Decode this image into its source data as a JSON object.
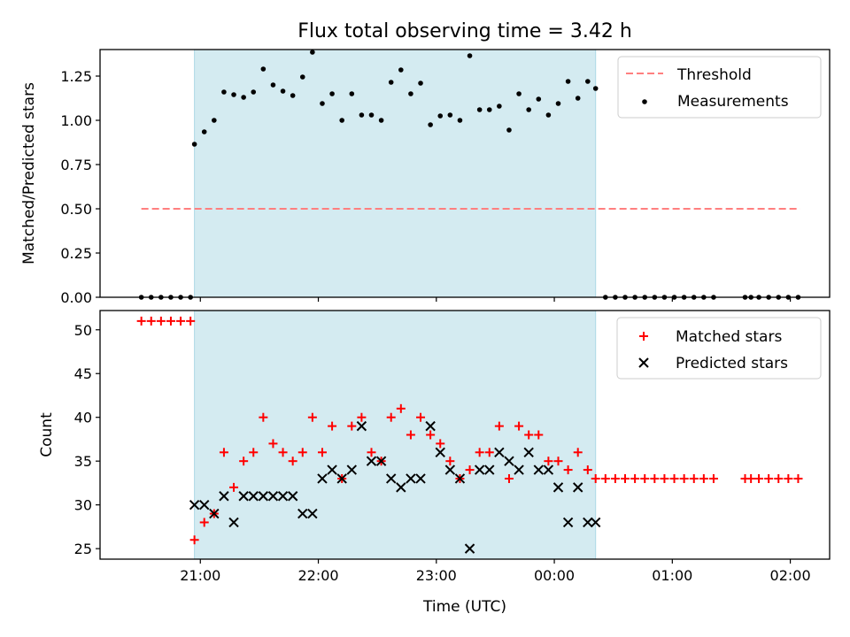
{
  "title": "Flux total observing time = 3.42 h",
  "colors": {
    "band": "#d4ebf1",
    "band_edge": "#add8e6",
    "threshold": "#ff7f7f",
    "matched": "#ff0000",
    "predicted": "#000000",
    "measurement": "#000000"
  },
  "band": {
    "start": "20:57",
    "end": "00:21"
  },
  "chart_data": [
    {
      "type": "scatter",
      "ylabel": "Matched/Predicted stars",
      "ylim": [
        0,
        1.4
      ],
      "yticks": [
        0.0,
        0.25,
        0.5,
        0.75,
        1.0,
        1.25
      ],
      "ytick_labels": [
        "0.00",
        "0.25",
        "0.50",
        "0.75",
        "1.00",
        "1.25"
      ],
      "x_axis": "time (hours of day, continuing past midnight)",
      "legend_position": "top-right",
      "threshold": {
        "name": "Threshold",
        "value": 0.5,
        "x_range": [
          "20:30",
          "02:05"
        ],
        "style": "dashed"
      },
      "series": [
        {
          "name": "Measurements",
          "marker": "dot",
          "points": [
            [
              "20:30",
              0.0
            ],
            [
              "20:35",
              0.0
            ],
            [
              "20:40",
              0.0
            ],
            [
              "20:45",
              0.0
            ],
            [
              "20:50",
              0.0
            ],
            [
              "20:55",
              0.0
            ],
            [
              "20:57",
              0.865
            ],
            [
              "21:02",
              0.935
            ],
            [
              "21:07",
              1.0
            ],
            [
              "21:12",
              1.16
            ],
            [
              "21:17",
              1.145
            ],
            [
              "21:22",
              1.13
            ],
            [
              "21:27",
              1.16
            ],
            [
              "21:32",
              1.29
            ],
            [
              "21:37",
              1.2
            ],
            [
              "21:42",
              1.165
            ],
            [
              "21:47",
              1.14
            ],
            [
              "21:52",
              1.245
            ],
            [
              "21:57",
              1.385
            ],
            [
              "22:02",
              1.095
            ],
            [
              "22:07",
              1.15
            ],
            [
              "22:12",
              1.0
            ],
            [
              "22:17",
              1.15
            ],
            [
              "22:22",
              1.03
            ],
            [
              "22:27",
              1.03
            ],
            [
              "22:32",
              1.0
            ],
            [
              "22:37",
              1.215
            ],
            [
              "22:42",
              1.285
            ],
            [
              "22:47",
              1.15
            ],
            [
              "22:52",
              1.21
            ],
            [
              "22:57",
              0.975
            ],
            [
              "23:02",
              1.025
            ],
            [
              "23:07",
              1.03
            ],
            [
              "23:12",
              1.0
            ],
            [
              "23:17",
              1.365
            ],
            [
              "23:22",
              1.06
            ],
            [
              "23:27",
              1.06
            ],
            [
              "23:32",
              1.08
            ],
            [
              "23:37",
              0.945
            ],
            [
              "23:42",
              1.15
            ],
            [
              "23:47",
              1.06
            ],
            [
              "23:52",
              1.12
            ],
            [
              "23:57",
              1.03
            ],
            [
              "00:02",
              1.095
            ],
            [
              "00:07",
              1.22
            ],
            [
              "00:12",
              1.125
            ],
            [
              "00:17",
              1.22
            ],
            [
              "00:21",
              1.18
            ],
            [
              "00:26",
              0.0
            ],
            [
              "00:31",
              0.0
            ],
            [
              "00:36",
              0.0
            ],
            [
              "00:41",
              0.0
            ],
            [
              "00:46",
              0.0
            ],
            [
              "00:51",
              0.0
            ],
            [
              "00:56",
              0.0
            ],
            [
              "01:01",
              0.0
            ],
            [
              "01:06",
              0.0
            ],
            [
              "01:11",
              0.0
            ],
            [
              "01:16",
              0.0
            ],
            [
              "01:21",
              0.0
            ],
            [
              "01:37",
              0.0
            ],
            [
              "01:40",
              0.0
            ],
            [
              "01:44",
              0.0
            ],
            [
              "01:49",
              0.0
            ],
            [
              "01:54",
              0.0
            ],
            [
              "01:59",
              0.0
            ],
            [
              "02:04",
              0.0
            ]
          ]
        }
      ]
    },
    {
      "type": "scatter",
      "ylabel": "Count",
      "xlabel": "Time (UTC)",
      "ylim": [
        23.8,
        52.2
      ],
      "yticks": [
        25,
        30,
        35,
        40,
        45,
        50
      ],
      "ytick_labels": [
        "25",
        "30",
        "35",
        "40",
        "45",
        "50"
      ],
      "xticks": [
        "21:00",
        "22:00",
        "23:00",
        "00:00",
        "01:00",
        "02:00"
      ],
      "xlim": [
        "20:09",
        "02:20"
      ],
      "legend_position": "top-right",
      "series": [
        {
          "name": "Matched stars",
          "marker": "plus",
          "points": [
            [
              "20:30",
              51
            ],
            [
              "20:35",
              51
            ],
            [
              "20:40",
              51
            ],
            [
              "20:45",
              51
            ],
            [
              "20:50",
              51
            ],
            [
              "20:55",
              51
            ],
            [
              "20:57",
              26
            ],
            [
              "21:02",
              28
            ],
            [
              "21:07",
              29
            ],
            [
              "21:12",
              36
            ],
            [
              "21:17",
              32
            ],
            [
              "21:22",
              35
            ],
            [
              "21:27",
              36
            ],
            [
              "21:32",
              40
            ],
            [
              "21:37",
              37
            ],
            [
              "21:42",
              36
            ],
            [
              "21:47",
              35
            ],
            [
              "21:52",
              36
            ],
            [
              "21:57",
              40
            ],
            [
              "22:02",
              36
            ],
            [
              "22:07",
              39
            ],
            [
              "22:12",
              33
            ],
            [
              "22:17",
              39
            ],
            [
              "22:22",
              40
            ],
            [
              "22:27",
              36
            ],
            [
              "22:32",
              35
            ],
            [
              "22:37",
              40
            ],
            [
              "22:42",
              41
            ],
            [
              "22:47",
              38
            ],
            [
              "22:52",
              40
            ],
            [
              "22:57",
              38
            ],
            [
              "23:02",
              37
            ],
            [
              "23:07",
              35
            ],
            [
              "23:12",
              33
            ],
            [
              "23:17",
              34
            ],
            [
              "23:22",
              36
            ],
            [
              "23:27",
              36
            ],
            [
              "23:32",
              39
            ],
            [
              "23:37",
              33
            ],
            [
              "23:42",
              39
            ],
            [
              "23:47",
              38
            ],
            [
              "23:52",
              38
            ],
            [
              "23:57",
              35
            ],
            [
              "00:02",
              35
            ],
            [
              "00:07",
              34
            ],
            [
              "00:12",
              36
            ],
            [
              "00:17",
              34
            ],
            [
              "00:21",
              33
            ],
            [
              "00:26",
              33
            ],
            [
              "00:31",
              33
            ],
            [
              "00:36",
              33
            ],
            [
              "00:41",
              33
            ],
            [
              "00:46",
              33
            ],
            [
              "00:51",
              33
            ],
            [
              "00:56",
              33
            ],
            [
              "01:01",
              33
            ],
            [
              "01:06",
              33
            ],
            [
              "01:11",
              33
            ],
            [
              "01:16",
              33
            ],
            [
              "01:21",
              33
            ],
            [
              "01:37",
              33
            ],
            [
              "01:40",
              33
            ],
            [
              "01:44",
              33
            ],
            [
              "01:49",
              33
            ],
            [
              "01:54",
              33
            ],
            [
              "01:59",
              33
            ],
            [
              "02:04",
              33
            ]
          ]
        },
        {
          "name": "Predicted stars",
          "marker": "x",
          "points": [
            [
              "20:57",
              30
            ],
            [
              "21:02",
              30
            ],
            [
              "21:07",
              29
            ],
            [
              "21:12",
              31
            ],
            [
              "21:17",
              28
            ],
            [
              "21:22",
              31
            ],
            [
              "21:27",
              31
            ],
            [
              "21:32",
              31
            ],
            [
              "21:37",
              31
            ],
            [
              "21:42",
              31
            ],
            [
              "21:47",
              31
            ],
            [
              "21:52",
              29
            ],
            [
              "21:57",
              29
            ],
            [
              "22:02",
              33
            ],
            [
              "22:07",
              34
            ],
            [
              "22:12",
              33
            ],
            [
              "22:17",
              34
            ],
            [
              "22:22",
              39
            ],
            [
              "22:27",
              35
            ],
            [
              "22:32",
              35
            ],
            [
              "22:37",
              33
            ],
            [
              "22:42",
              32
            ],
            [
              "22:47",
              33
            ],
            [
              "22:52",
              33
            ],
            [
              "22:57",
              39
            ],
            [
              "23:02",
              36
            ],
            [
              "23:07",
              34
            ],
            [
              "23:12",
              33
            ],
            [
              "23:17",
              25
            ],
            [
              "23:22",
              34
            ],
            [
              "23:27",
              34
            ],
            [
              "23:32",
              36
            ],
            [
              "23:37",
              35
            ],
            [
              "23:42",
              34
            ],
            [
              "23:47",
              36
            ],
            [
              "23:52",
              34
            ],
            [
              "23:57",
              34
            ],
            [
              "00:02",
              32
            ],
            [
              "00:07",
              28
            ],
            [
              "00:12",
              32
            ],
            [
              "00:17",
              28
            ],
            [
              "00:21",
              28
            ]
          ]
        }
      ]
    }
  ]
}
